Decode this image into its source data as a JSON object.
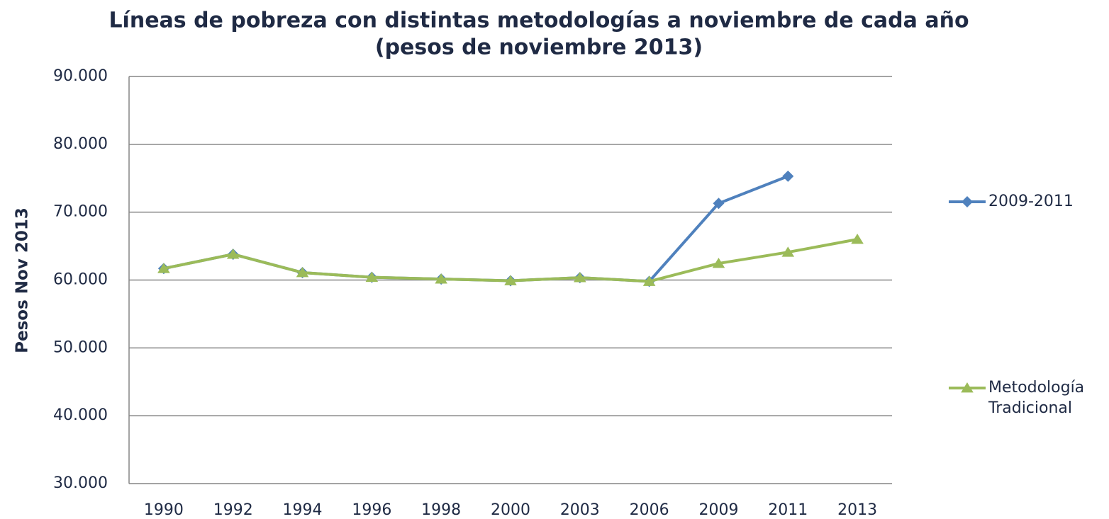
{
  "chart_data": {
    "type": "line",
    "title": "Líneas de pobreza con distintas metodologías a noviembre de cada año",
    "subtitle": "(pesos de noviembre 2013)",
    "y_label": "Pesos Nov 2013",
    "categories": [
      "1990",
      "1992",
      "1994",
      "1996",
      "1998",
      "2000",
      "2003",
      "2006",
      "2009",
      "2011",
      "2013"
    ],
    "series": [
      {
        "name": "2009-2011",
        "color": "#4f81bd",
        "marker": "diamond",
        "values": [
          61700,
          63800,
          61100,
          60400,
          60150,
          59900,
          60350,
          59800,
          71300,
          75300,
          null
        ]
      },
      {
        "name": "Metodología Tradicional",
        "color": "#9bbb59",
        "marker": "triangle",
        "values": [
          61700,
          63800,
          61100,
          60400,
          60150,
          59900,
          60350,
          59800,
          62450,
          64100,
          66000
        ]
      }
    ],
    "ylim": [
      30000,
      90000
    ],
    "yticks": [
      {
        "value": 30000,
        "label": "30.000"
      },
      {
        "value": 40000,
        "label": "40.000"
      },
      {
        "value": 50000,
        "label": "50.000"
      },
      {
        "value": 60000,
        "label": "60.000"
      },
      {
        "value": 70000,
        "label": "70.000"
      },
      {
        "value": 80000,
        "label": "80.000"
      },
      {
        "value": 90000,
        "label": "90.000"
      }
    ],
    "grid": true,
    "legend": "right"
  }
}
